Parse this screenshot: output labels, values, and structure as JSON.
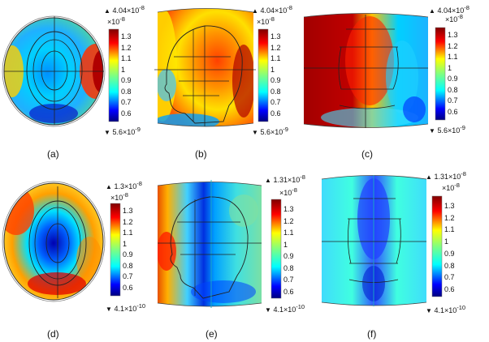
{
  "panels": [
    {
      "label": "(a)",
      "view": "top",
      "max": "4.04",
      "min": "5.6",
      "max_exp": "-8",
      "min_exp": "-9",
      "scale": "×10",
      "scale_exp": "-8"
    },
    {
      "label": "(b)",
      "view": "side",
      "max": "4.04",
      "min": "5.6",
      "max_exp": "-8",
      "min_exp": "-9",
      "scale": "×10",
      "scale_exp": "-8"
    },
    {
      "label": "(c)",
      "view": "front",
      "max": "4.04",
      "min": "5.6",
      "max_exp": "-8",
      "min_exp": "-9",
      "scale": "×10",
      "scale_exp": "-8"
    },
    {
      "label": "(d)",
      "view": "top",
      "max": "1.3",
      "min": "4.1",
      "max_exp": "-8",
      "min_exp": "-10",
      "scale": "×10",
      "scale_exp": "-8"
    },
    {
      "label": "(e)",
      "view": "side",
      "max": "1.31",
      "min": "4.1",
      "max_exp": "-8",
      "min_exp": "-10",
      "scale": "×10",
      "scale_exp": "-8"
    },
    {
      "label": "(f)",
      "view": "front",
      "max": "1.31",
      "min": "4.1",
      "max_exp": "-8",
      "min_exp": "-10",
      "scale": "×10",
      "scale_exp": "-8"
    }
  ],
  "colorbar_ticks": [
    "1.3",
    "1.2",
    "1.1",
    "1",
    "0.9",
    "0.8",
    "0.7",
    "0.6"
  ],
  "colormap": [
    "#00007f",
    "#0000ff",
    "#0080ff",
    "#00ffff",
    "#80ff80",
    "#ffff00",
    "#ff8000",
    "#ff0000",
    "#7f0000"
  ]
}
